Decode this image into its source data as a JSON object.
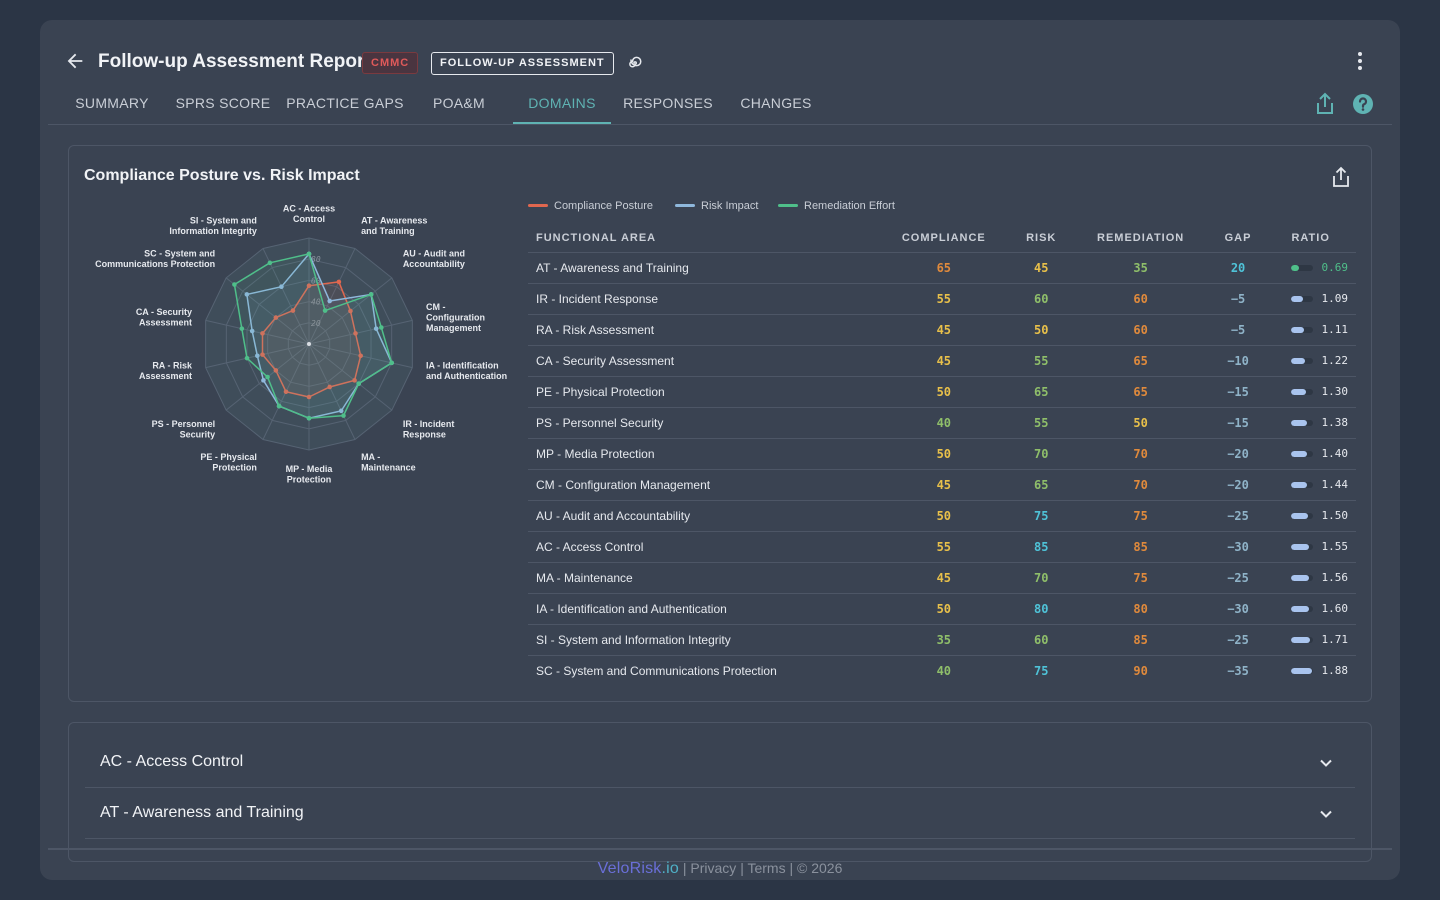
{
  "header": {
    "title": "Follow-up Assessment Report",
    "badge_framework": "CMMC",
    "badge_type": "FOLLOW-UP ASSESSMENT"
  },
  "tabs": [
    {
      "label": "SUMMARY"
    },
    {
      "label": "SPRS SCORE"
    },
    {
      "label": "PRACTICE GAPS"
    },
    {
      "label": "POA&M"
    },
    {
      "label": "DOMAINS",
      "active": true
    },
    {
      "label": "RESPONSES"
    },
    {
      "label": "CHANGES"
    }
  ],
  "icons": {
    "back": "arrow-left-icon",
    "spiral": "spiral-icon",
    "more": "more-vertical-icon",
    "share": "share-icon",
    "help": "help-icon",
    "expand": "chevron-down-icon"
  },
  "colors": {
    "compliance": "#e0674f",
    "risk": "#8fb8dc",
    "remediation": "#4fbf8a",
    "accent": "#5fb3b3",
    "yellow": "#e8c04a",
    "orange": "#e08a3c",
    "green": "#8fbf6a",
    "cyan": "#4fc3d8",
    "red": "#e05a5a"
  },
  "card": {
    "title": "Compliance Posture vs. Risk Impact",
    "legend": [
      "Compliance Posture",
      "Risk Impact",
      "Remediation Effort"
    ]
  },
  "table": {
    "headers": [
      "FUNCTIONAL AREA",
      "COMPLIANCE",
      "RISK",
      "REMEDIATION",
      "GAP",
      "RATIO"
    ],
    "rows": [
      {
        "area": "AT - Awareness and Training",
        "compliance": "65",
        "risk": "45",
        "remediation": "35",
        "gap": "20",
        "ratio": "0.69"
      },
      {
        "area": "IR - Incident Response",
        "compliance": "55",
        "risk": "60",
        "remediation": "60",
        "gap": "−5",
        "ratio": "1.09"
      },
      {
        "area": "RA - Risk Assessment",
        "compliance": "45",
        "risk": "50",
        "remediation": "60",
        "gap": "−5",
        "ratio": "1.11"
      },
      {
        "area": "CA - Security Assessment",
        "compliance": "45",
        "risk": "55",
        "remediation": "65",
        "gap": "−10",
        "ratio": "1.22"
      },
      {
        "area": "PE - Physical Protection",
        "compliance": "50",
        "risk": "65",
        "remediation": "65",
        "gap": "−15",
        "ratio": "1.30"
      },
      {
        "area": "PS - Personnel Security",
        "compliance": "40",
        "risk": "55",
        "remediation": "50",
        "gap": "−15",
        "ratio": "1.38"
      },
      {
        "area": "MP - Media Protection",
        "compliance": "50",
        "risk": "70",
        "remediation": "70",
        "gap": "−20",
        "ratio": "1.40"
      },
      {
        "area": "CM - Configuration Management",
        "compliance": "45",
        "risk": "65",
        "remediation": "70",
        "gap": "−20",
        "ratio": "1.44"
      },
      {
        "area": "AU - Audit and Accountability",
        "compliance": "50",
        "risk": "75",
        "remediation": "75",
        "gap": "−25",
        "ratio": "1.50"
      },
      {
        "area": "AC - Access Control",
        "compliance": "55",
        "risk": "85",
        "remediation": "85",
        "gap": "−30",
        "ratio": "1.55"
      },
      {
        "area": "MA - Maintenance",
        "compliance": "45",
        "risk": "70",
        "remediation": "75",
        "gap": "−25",
        "ratio": "1.56"
      },
      {
        "area": "IA - Identification and Authentication",
        "compliance": "50",
        "risk": "80",
        "remediation": "80",
        "gap": "−30",
        "ratio": "1.60"
      },
      {
        "area": "SI - System and Information Integrity",
        "compliance": "35",
        "risk": "60",
        "remediation": "85",
        "gap": "−25",
        "ratio": "1.71"
      },
      {
        "area": "SC - System and Communications Protection",
        "compliance": "40",
        "risk": "75",
        "remediation": "90",
        "gap": "−35",
        "ratio": "1.88"
      }
    ]
  },
  "chart_data": {
    "type": "radar",
    "title": "Compliance Posture vs. Risk Impact",
    "axes": [
      "AC - Access Control",
      "AT - Awareness and Training",
      "AU - Audit and Accountability",
      "CM - Configuration Management",
      "IA - Identification and Authentication",
      "IR - Incident Response",
      "MA - Maintenance",
      "MP - Media Protection",
      "PE - Physical Protection",
      "PS - Personnel Security",
      "RA - Risk Assessment",
      "CA - Security Assessment",
      "SC - System and Communications Protection",
      "SI - System and Information Integrity"
    ],
    "axis_labels": [
      [
        "AC - Access",
        "Control"
      ],
      [
        "AT - Awareness",
        "and Training"
      ],
      [
        "AU - Audit and",
        "Accountability"
      ],
      [
        "CM -",
        "Configuration",
        "Management"
      ],
      [
        "IA - Identification",
        "and Authentication"
      ],
      [
        "IR - Incident",
        "Response"
      ],
      [
        "MA -",
        "Maintenance"
      ],
      [
        "MP - Media",
        "Protection"
      ],
      [
        "PE - Physical",
        "Protection"
      ],
      [
        "PS - Personnel",
        "Security"
      ],
      [
        "RA - Risk",
        "Assessment"
      ],
      [
        "CA - Security",
        "Assessment"
      ],
      [
        "SC - System and",
        "Communications Protection"
      ],
      [
        "SI - System and",
        "Information Integrity"
      ]
    ],
    "ticks": [
      "20",
      "40",
      "60",
      "80"
    ],
    "range": [
      0,
      100
    ],
    "series": [
      {
        "name": "Compliance Posture",
        "color": "#e0674f",
        "values": [
          55,
          65,
          50,
          45,
          50,
          55,
          45,
          50,
          50,
          40,
          45,
          45,
          40,
          35
        ]
      },
      {
        "name": "Risk Impact",
        "color": "#8fb8dc",
        "values": [
          85,
          45,
          75,
          65,
          80,
          60,
          70,
          70,
          65,
          55,
          50,
          55,
          75,
          60
        ]
      },
      {
        "name": "Remediation Effort",
        "color": "#4fbf8a",
        "values": [
          85,
          35,
          75,
          70,
          80,
          60,
          75,
          70,
          65,
          50,
          60,
          65,
          90,
          85
        ]
      }
    ],
    "legend": "top"
  },
  "accordion": [
    {
      "label": "AC - Access Control"
    },
    {
      "label": "AT - Awareness and Training"
    }
  ],
  "footer": {
    "brand_name": "VeloRisk",
    "brand_tld": ".io",
    "sep1": " | ",
    "privacy": "Privacy",
    "sep2": " | ",
    "terms": "Terms",
    "copyright": " | © 2026"
  }
}
